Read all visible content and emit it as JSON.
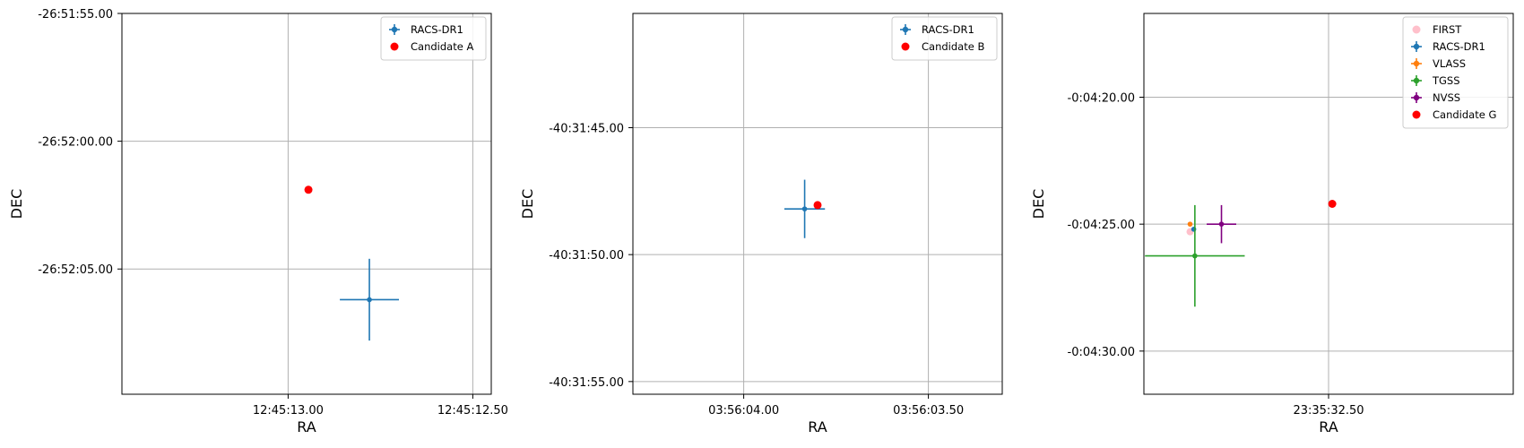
{
  "chart_data": [
    {
      "type": "scatter",
      "xlabel": "RA",
      "ylabel": "DEC",
      "x_axis_direction": "decreasing",
      "xlim_ra_seconds": [
        13.45,
        12.45
      ],
      "ylim_dec_seconds": [
        -9.9,
        5.0
      ],
      "x_ticks": [
        {
          "label": "12:45:13.00",
          "ra_seconds": 13.0
        },
        {
          "label": "12:45:12.50",
          "ra_seconds": 12.5
        }
      ],
      "y_ticks": [
        {
          "label": "-26:51:55.00",
          "dec_seconds": 5.0
        },
        {
          "label": "-26:52:00.00",
          "dec_seconds": 0.0
        },
        {
          "label": "-26:52:05.00",
          "dec_seconds": -5.0
        }
      ],
      "grid": true,
      "legend_position": "upper right",
      "series": [
        {
          "name": "RACS-DR1",
          "color": "#1f77b4",
          "marker": "dot",
          "points": [
            {
              "ra_seconds": 12.78,
              "dec_seconds": -6.2,
              "ra_err": 0.08,
              "dec_err": 1.6
            }
          ]
        },
        {
          "name": "Candidate A",
          "color": "#ff0000",
          "marker": "dot",
          "points": [
            {
              "ra_seconds": 12.945,
              "dec_seconds": -1.9
            }
          ]
        }
      ]
    },
    {
      "type": "scatter",
      "xlabel": "RA",
      "ylabel": "DEC",
      "x_axis_direction": "decreasing",
      "xlim_ra_seconds": [
        4.3,
        3.3
      ],
      "ylim_dec_seconds": [
        -55.5,
        -40.5
      ],
      "x_ticks": [
        {
          "label": "03:56:04.00",
          "ra_seconds": 4.0
        },
        {
          "label": "03:56:03.50",
          "ra_seconds": 3.5
        }
      ],
      "y_ticks": [
        {
          "label": "-40:31:45.00",
          "dec_seconds": -45.0
        },
        {
          "label": "-40:31:50.00",
          "dec_seconds": -50.0
        },
        {
          "label": "-40:31:55.00",
          "dec_seconds": -55.0
        }
      ],
      "grid": true,
      "legend_position": "upper right",
      "series": [
        {
          "name": "RACS-DR1",
          "color": "#1f77b4",
          "marker": "dot",
          "points": [
            {
              "ra_seconds": 3.835,
              "dec_seconds": -48.2,
              "ra_err": 0.055,
              "dec_err": 1.15
            }
          ]
        },
        {
          "name": "Candidate B",
          "color": "#ff0000",
          "marker": "dot",
          "points": [
            {
              "ra_seconds": 3.8,
              "dec_seconds": -48.05
            }
          ]
        }
      ]
    },
    {
      "type": "scatter",
      "xlabel": "RA",
      "ylabel": "DEC",
      "x_axis_direction": "decreasing",
      "xlim_ra_seconds": [
        33.0,
        32.0
      ],
      "ylim_dec_seconds": [
        -31.7,
        -16.7
      ],
      "x_ticks": [
        {
          "label": "23:35:32.50",
          "ra_seconds": 32.5
        }
      ],
      "y_ticks": [
        {
          "label": "-0:04:20.00",
          "dec_seconds": -20.0
        },
        {
          "label": "-0:04:25.00",
          "dec_seconds": -25.0
        },
        {
          "label": "-0:04:30.00",
          "dec_seconds": -30.0
        }
      ],
      "grid": true,
      "legend_position": "upper right",
      "series": [
        {
          "name": "FIRST",
          "color": "#ffc0cb",
          "marker": "dot",
          "points": [
            {
              "ra_seconds": 32.875,
              "dec_seconds": -25.3
            }
          ]
        },
        {
          "name": "RACS-DR1",
          "color": "#1f77b4",
          "marker": "dot",
          "points": [
            {
              "ra_seconds": 32.865,
              "dec_seconds": -25.2,
              "ra_err": 0.005,
              "dec_err": 0.05
            }
          ]
        },
        {
          "name": "VLASS",
          "color": "#ff7f0e",
          "marker": "dot",
          "points": [
            {
              "ra_seconds": 32.875,
              "dec_seconds": -25.0,
              "ra_err": 0.003,
              "dec_err": 0.04
            }
          ]
        },
        {
          "name": "TGSS",
          "color": "#2ca02c",
          "marker": "dot",
          "points": [
            {
              "ra_seconds": 32.862,
              "dec_seconds": -26.25,
              "ra_err": 0.135,
              "dec_err": 2.0
            }
          ]
        },
        {
          "name": "NVSS",
          "color": "#800080",
          "marker": "dot",
          "points": [
            {
              "ra_seconds": 32.79,
              "dec_seconds": -25.0,
              "ra_err": 0.04,
              "dec_err": 0.75
            }
          ]
        },
        {
          "name": "Candidate G",
          "color": "#ff0000",
          "marker": "dot",
          "points": [
            {
              "ra_seconds": 32.49,
              "dec_seconds": -24.2
            }
          ]
        }
      ]
    }
  ]
}
